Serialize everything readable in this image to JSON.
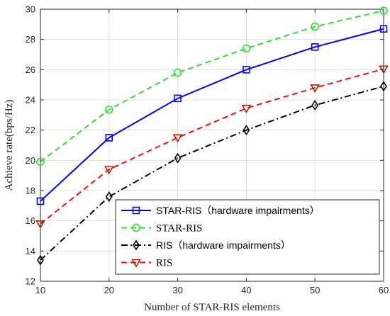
{
  "chart_data": {
    "type": "line",
    "title": "",
    "xlabel": "Number of STAR-RIS elements",
    "ylabel": "Achieve rate(bps/Hz)",
    "x": [
      10,
      20,
      30,
      40,
      50,
      60
    ],
    "xlim": [
      10,
      60
    ],
    "ylim": [
      12,
      30
    ],
    "xticks": [
      "10",
      "20",
      "30",
      "40",
      "50",
      "60"
    ],
    "yticks": [
      "12",
      "14",
      "16",
      "18",
      "20",
      "22",
      "24",
      "26",
      "28",
      "30"
    ],
    "grid": true,
    "legend_position": "bottom-right",
    "series": [
      {
        "name": "STAR-RIS（hardware impairments）",
        "color": "#0000ff",
        "dash": "solid",
        "marker": "square",
        "marker_color": "#0000ff",
        "legend_font": "sans",
        "values": [
          17.3,
          21.5,
          24.1,
          26.0,
          27.5,
          28.7
        ]
      },
      {
        "name": "STAR-RIS",
        "color": "#33dd33",
        "dash": "dashed",
        "marker": "circle",
        "marker_color": "#33dd33",
        "legend_font": "serif",
        "values": [
          19.9,
          23.35,
          25.8,
          27.4,
          28.85,
          29.9
        ]
      },
      {
        "name": "RIS（hardware impairments）",
        "color": "#000000",
        "dash": "dashdot",
        "marker": "diamond",
        "marker_color": "#000000",
        "legend_font": "sans",
        "values": [
          13.4,
          17.6,
          20.15,
          22.0,
          23.65,
          24.9
        ]
      },
      {
        "name": "RIS",
        "color": "#ee1111",
        "dash": "dashed",
        "marker": "triangle-down",
        "marker_color": "#aa2200",
        "legend_font": "serif",
        "values": [
          15.8,
          19.4,
          21.5,
          23.45,
          24.8,
          26.05
        ]
      }
    ]
  }
}
